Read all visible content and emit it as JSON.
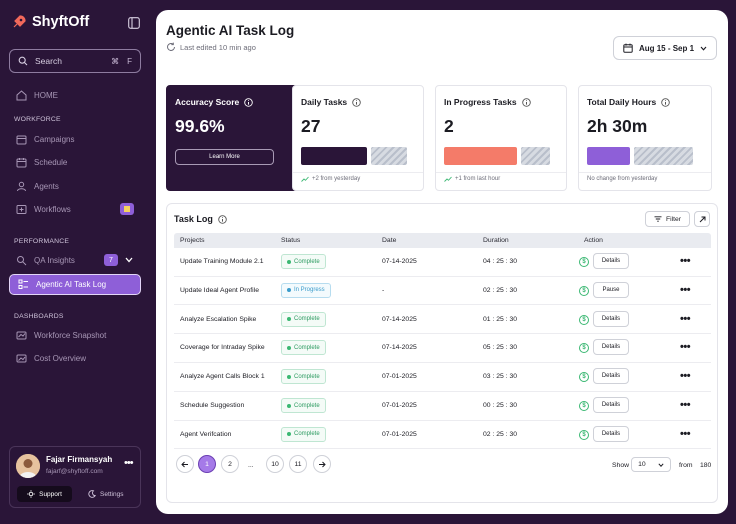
{
  "app": {
    "name": "ShyftOff"
  },
  "search": {
    "placeholder": "Search",
    "shortcut_cmd": "⌘",
    "shortcut_key": "F"
  },
  "nav": {
    "home": "HOME",
    "workforce_section": "WORKFORCE",
    "campaigns": "Campaigns",
    "schedule": "Schedule",
    "agents": "Agents",
    "workflows": "Workflows",
    "performance_section": "PERFORMANCE",
    "qa_insights": "QA Insights",
    "qa_badge": "7",
    "task_log": "Agentic AI Task Log",
    "dashboards_section": "DASHBOARDS",
    "snapshot": "Workforce Snapshot",
    "cost": "Cost Overview"
  },
  "user": {
    "name": "Fajar Firmansyah",
    "email": "fajarf@shyftoff.com",
    "support": "Support",
    "settings": "Settings"
  },
  "header": {
    "title": "Agentic AI Task Log",
    "edited": "Last edited 10 min ago",
    "date_range": "Aug 15 - Sep 1"
  },
  "cards": [
    {
      "label": "Accuracy Score",
      "value": "99.6%",
      "button": "Learn More"
    },
    {
      "label": "Daily Tasks",
      "value": "27",
      "note": "+2 from yesterday",
      "fill": 0.65
    },
    {
      "label": "In Progress Tasks",
      "value": "2",
      "note": "+1 from last hour",
      "fill": 0.72
    },
    {
      "label": "Total Daily Hours",
      "value": "2h 30m",
      "note": "No change from yesterday",
      "fill": 0.42
    }
  ],
  "table": {
    "title": "Task Log",
    "filter": "Filter",
    "headers": [
      "Projects",
      "Status",
      "Date",
      "Duration",
      "Action"
    ],
    "rows": [
      {
        "project": "Update Training Module 2.1",
        "status": "Complete",
        "date": "07-14-2025",
        "duration": "04 : 25 : 30",
        "action": "Details"
      },
      {
        "project": "Update Ideal Agent Profile",
        "status": "In Progress",
        "date": "-",
        "duration": "02 : 25 : 30",
        "action": "Pause"
      },
      {
        "project": "Analyze Escalation Spike",
        "status": "Complete",
        "date": "07-14-2025",
        "duration": "01 : 25 : 30",
        "action": "Details"
      },
      {
        "project": "Coverage for Intraday Spike",
        "status": "Complete",
        "date": "07-14-2025",
        "duration": "05 : 25 : 30",
        "action": "Details"
      },
      {
        "project": "Analyze Agent Calls Block 1",
        "status": "Complete",
        "date": "07-01-2025",
        "duration": "03 : 25 : 30",
        "action": "Details"
      },
      {
        "project": "Schedule Suggestion",
        "status": "Complete",
        "date": "07-01-2025",
        "duration": "00 : 25 : 30",
        "action": "Details"
      },
      {
        "project": "Agent Verifcation",
        "status": "Complete",
        "date": "07-01-2025",
        "duration": "02 : 25 : 30",
        "action": "Details"
      }
    ]
  },
  "pagination": {
    "pages": [
      "1",
      "2",
      "...",
      "10",
      "11"
    ],
    "show_label": "Show",
    "per_page": "10",
    "from_label": "from",
    "total": "180"
  },
  "colors": {
    "brand": "#2a1538",
    "accent": "#8e5fd8",
    "daily_bar": "#2a1538",
    "progress_bar": "#f47b69",
    "hours_bar": "#8e5fd8"
  }
}
